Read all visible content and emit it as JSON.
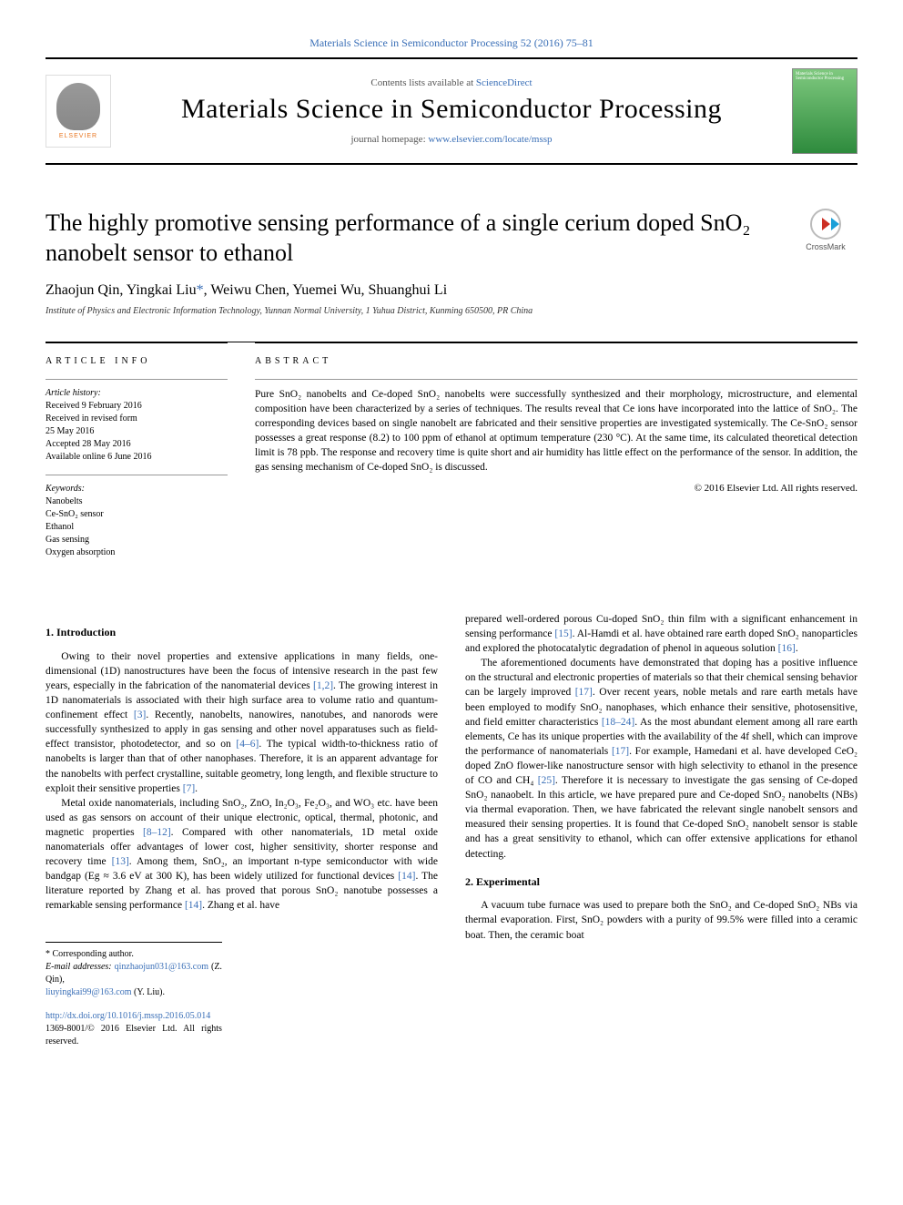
{
  "header": {
    "citation_link": "Materials Science in Semiconductor Processing 52 (2016) 75–81",
    "contents_prefix": "Contents lists available at ",
    "contents_link": "ScienceDirect",
    "journal_title": "Materials Science in Semiconductor Processing",
    "homepage_prefix": "journal homepage: ",
    "homepage_url": "www.elsevier.com/locate/mssp",
    "elsevier_label": "ELSEVIER",
    "cover_text": "Materials Science in Semiconductor Processing",
    "crossmark_label": "CrossMark"
  },
  "title": "The highly promotive sensing performance of a single cerium doped SnO₂ nanobelt sensor to ethanol",
  "authors": "Zhaojun Qin, Yingkai Liu",
  "authors_corr_mark": "*",
  "authors_tail": ", Weiwu Chen, Yuemei Wu, Shuanghui Li",
  "affiliation": "Institute of Physics and Electronic Information Technology, Yunnan Normal University, 1 Yuhua District, Kunming 650500, PR China",
  "info": {
    "heading": "ARTICLE INFO",
    "history_label": "Article history:",
    "history": [
      "Received 9 February 2016",
      "Received in revised form",
      "25 May 2016",
      "Accepted 28 May 2016",
      "Available online 6 June 2016"
    ],
    "keywords_label": "Keywords:",
    "keywords": [
      "Nanobelts",
      "Ce-SnO₂ sensor",
      "Ethanol",
      "Gas sensing",
      "Oxygen absorption"
    ]
  },
  "abstract": {
    "heading": "ABSTRACT",
    "text": "Pure SnO₂ nanobelts and Ce-doped SnO₂ nanobelts were successfully synthesized and their morphology, microstructure, and elemental composition have been characterized by a series of techniques. The results reveal that Ce ions have incorporated into the lattice of SnO₂. The corresponding devices based on single nanobelt are fabricated and their sensitive properties are investigated systemically. The Ce-SnO₂ sensor possesses a great response (8.2) to 100 ppm of ethanol at optimum temperature (230 °C). At the same time, its calculated theoretical detection limit is 78 ppb. The response and recovery time is quite short and air humidity has little effect on the performance of the sensor. In addition, the gas sensing mechanism of Ce-doped SnO₂ is discussed.",
    "copyright": "© 2016 Elsevier Ltd. All rights reserved."
  },
  "sections": {
    "intro_heading": "1. Introduction",
    "exp_heading": "2. Experimental",
    "col1": {
      "p1a": "Owing to their novel properties and extensive applications in many fields, one-dimensional (1D) nanostructures have been the focus of intensive research in the past few years, especially in the fabrication of the nanomaterial devices ",
      "r1": "[1,2]",
      "p1b": ". The growing interest in 1D nanomaterials is associated with their high surface area to volume ratio and quantum-confinement effect ",
      "r2": "[3]",
      "p1c": ". Recently, nanobelts, nanowires, nanotubes, and nanorods were successfully synthesized to apply in gas sensing and other novel apparatuses such as field-effect transistor, photodetector, and so on ",
      "r3": "[4–6]",
      "p1d": ". The typical width-to-thickness ratio of nanobelts is larger than that of other nanophases. Therefore, it is an apparent advantage for the nanobelts with perfect crystalline, suitable geometry, long length, and flexible structure to exploit their sensitive properties ",
      "r4": "[7]",
      "p1e": ".",
      "p2a": "Metal oxide nanomaterials, including SnO₂, ZnO, In₂O₃, Fe₂O₃, and WO₃ etc. have been used as gas sensors on account of their unique electronic, optical, thermal, photonic, and magnetic properties ",
      "r5": "[8–12]",
      "p2b": ". Compared with other nanomaterials, 1D metal oxide nanomaterials offer advantages of lower cost, higher sensitivity, shorter response and recovery time ",
      "r6": "[13]",
      "p2c": ". Among them, SnO₂, an important n-type semiconductor with wide bandgap (Eg ≈ 3.6 eV at 300 K), has been widely utilized for functional devices ",
      "r7": "[14]",
      "p2d": ". The literature reported by Zhang et al. has proved that porous SnO₂ nanotube possesses a remarkable sensing performance ",
      "r8": "[14]",
      "p2e": ". Zhang et al. have"
    },
    "col2": {
      "p0a": "prepared well-ordered porous Cu-doped SnO₂ thin film with a significant enhancement in sensing performance ",
      "r9": "[15]",
      "p0b": ". Al-Hamdi et al. have obtained rare earth doped SnO₂ nanoparticles and explored the photocatalytic degradation of phenol in aqueous solution ",
      "r10": "[16]",
      "p0c": ".",
      "p1a": "The aforementioned documents have demonstrated that doping has a positive influence on the structural and electronic properties of materials so that their chemical sensing behavior can be largely improved ",
      "r11": "[17]",
      "p1b": ". Over recent years, noble metals and rare earth metals have been employed to modify SnO₂ nanophases, which enhance their sensitive, photosensitive, and field emitter characteristics ",
      "r12": "[18–24]",
      "p1c": ". As the most abundant element among all rare earth elements, Ce has its unique properties with the availability of the 4f shell, which can improve the performance of nanomaterials ",
      "r13": "[17]",
      "p1d": ". For example, Hamedani et al. have developed CeO₂ doped ZnO flower-like nanostructure sensor with high selectivity to ethanol in the presence of CO and CH₄ ",
      "r14": "[25]",
      "p1e": ". Therefore it is necessary to investigate the gas sensing of Ce-doped SnO₂ nanaobelt. In this article, we have prepared pure and Ce-doped SnO₂ nanobelts (NBs) via thermal evaporation. Then, we have fabricated the relevant single nanobelt sensors and measured their sensing properties. It is found that Ce-doped SnO₂ nanobelt sensor is stable and has a great sensitivity to ethanol, which can offer extensive applications for ethanol detecting.",
      "p2": "A vacuum tube furnace was used to prepare both the SnO₂ and Ce-doped SnO₂ NBs via thermal evaporation. First, SnO₂ powders with a purity of 99.5% were filled into a ceramic boat. Then, the ceramic boat"
    }
  },
  "footnotes": {
    "corr_label": "* Corresponding author.",
    "email_label": "E-mail addresses: ",
    "email1": "qinzhaojun031@163.com",
    "email1_name": " (Z. Qin),",
    "email2": "liuyingkai99@163.com",
    "email2_name": " (Y. Liu).",
    "doi": "http://dx.doi.org/10.1016/j.mssp.2016.05.014",
    "issn": "1369-8001/© 2016 Elsevier Ltd. All rights reserved."
  },
  "style": {
    "link_color": "#3a6fb7",
    "text_color": "#000000",
    "elsevier_orange": "#e87722",
    "body_font_size": 11.5,
    "title_font_size": 26,
    "journal_title_size": 30
  }
}
